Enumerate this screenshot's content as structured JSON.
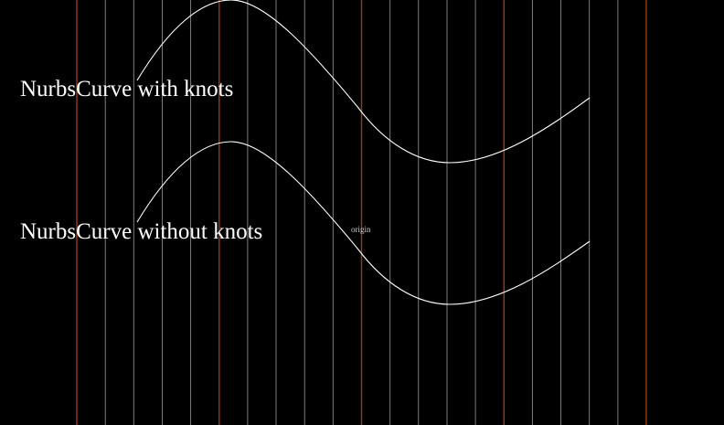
{
  "scene": {
    "background": "#000000",
    "grid": {
      "minor_color": "#8a8a8a",
      "major_color": "#9b3a12"
    },
    "curve_color": "#ffffff"
  },
  "labels": {
    "curve_with_knots": "NurbsCurve with knots",
    "curve_without_knots": "NurbsCurve without knots",
    "origin": "origin"
  }
}
